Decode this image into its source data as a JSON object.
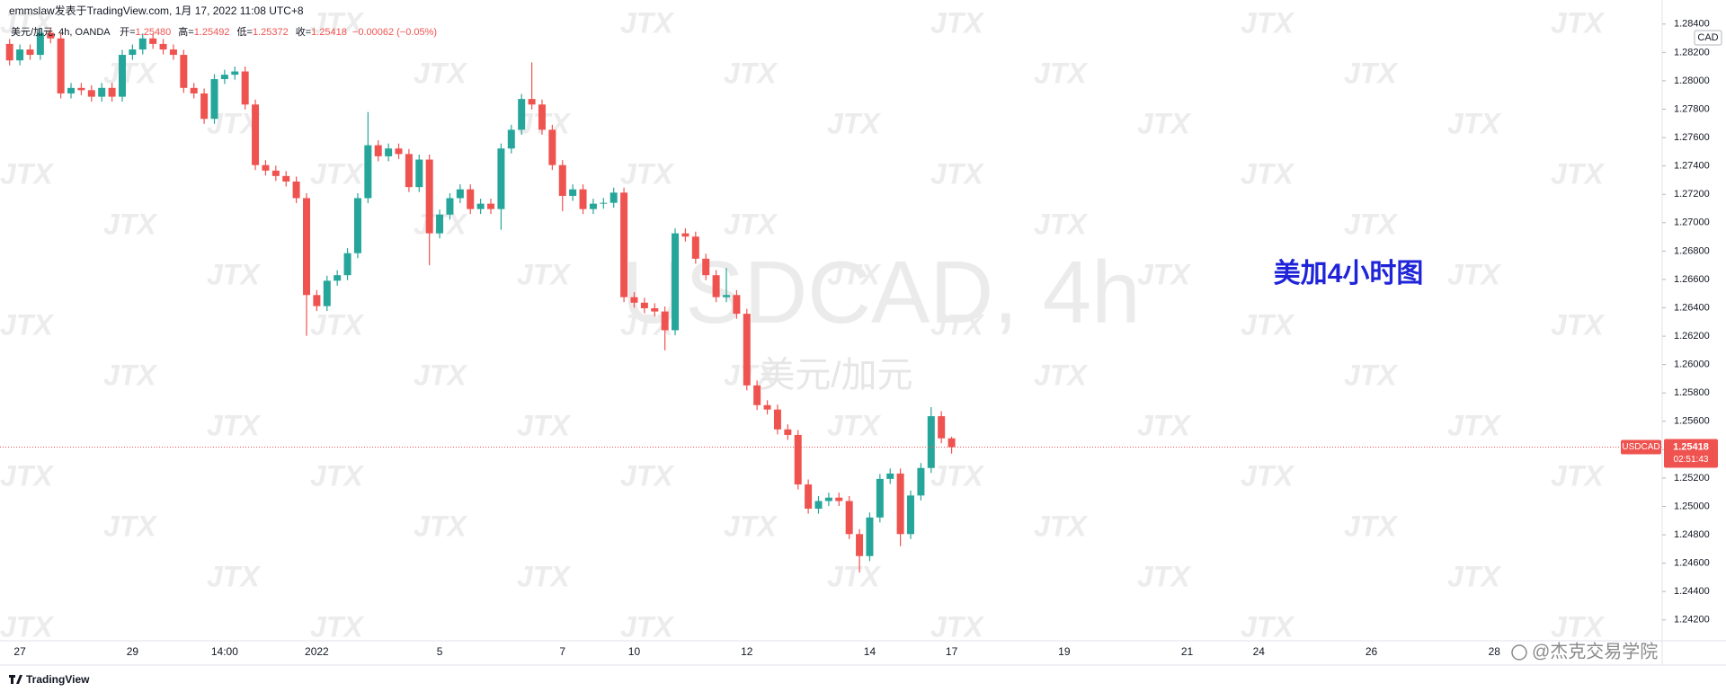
{
  "header": {
    "publisher": "emmslaw发表于TradingView.com, 1月 17, 2022 11:08 UTC+8"
  },
  "footer": {
    "branding": "TradingView",
    "credit": "@杰克交易学院"
  },
  "chart_data": {
    "type": "candlestick",
    "title": "美元/加元, 4h, OANDA",
    "ohlc_legend": [
      {
        "label": "开=",
        "text": "1.25480"
      },
      {
        "label": "高=",
        "text": "1.25492"
      },
      {
        "label": "低=",
        "text": "1.25372"
      },
      {
        "label": "收=",
        "text": "1.25418"
      }
    ],
    "change": "−0.00062 (−0.05%)",
    "watermark_symbol": "USDCAD, 4h",
    "watermark_name": "美元/加元",
    "watermark_tile": "JTX",
    "annotation": "美加4小时图",
    "currency": "CAD",
    "symbol": "USDCAD",
    "countdown": "02:51:43",
    "up_color": "#26a69a",
    "down_color": "#ef5350",
    "grid": false,
    "categories": [
      null,
      "27",
      null,
      null,
      null,
      null,
      null,
      null,
      null,
      null,
      null,
      null,
      "29",
      null,
      null,
      null,
      null,
      null,
      null,
      null,
      null,
      "14:00",
      null,
      null,
      null,
      null,
      null,
      null,
      null,
      null,
      "2022",
      null,
      null,
      null,
      null,
      null,
      null,
      null,
      null,
      null,
      null,
      null,
      "5",
      null,
      null,
      null,
      null,
      null,
      null,
      null,
      null,
      null,
      null,
      null,
      "7",
      null,
      null,
      null,
      null,
      null,
      null,
      "10",
      null,
      null,
      null,
      null,
      null,
      null,
      null,
      null,
      null,
      null,
      "12",
      null,
      null,
      null,
      null,
      null,
      null,
      null,
      null,
      null,
      null,
      null,
      "14",
      null,
      null,
      null,
      null,
      null,
      null,
      null,
      "17",
      null,
      null,
      null,
      null,
      null,
      null,
      null,
      null,
      null,
      null,
      "19",
      null,
      null,
      null,
      null,
      null,
      null,
      null,
      null,
      null,
      null,
      null,
      "21",
      null,
      null,
      null,
      null,
      null,
      null,
      "24",
      null,
      null,
      null,
      null,
      null,
      null,
      null,
      null,
      null,
      null,
      "26",
      null,
      null,
      null,
      null,
      null,
      null,
      null,
      null,
      null,
      null,
      null,
      "28",
      null,
      null,
      null,
      null,
      null,
      null,
      null,
      null,
      null,
      null,
      null,
      null,
      null,
      null,
      null
    ],
    "open": [
      1.2826,
      1.28144,
      1.28221,
      1.28183,
      1.28338,
      1.28299,
      1.27911,
      1.2795,
      1.27934,
      1.27888,
      1.2795,
      1.27888,
      1.28183,
      1.28221,
      1.28299,
      1.2826,
      1.28221,
      1.28183,
      1.2795,
      1.27911,
      1.27732,
      1.28012,
      1.28043,
      1.28066,
      1.27833,
      1.27406,
      1.27367,
      1.27329,
      1.2729,
      1.27173,
      1.2649,
      1.26412,
      1.26591,
      1.2663,
      1.26785,
      1.27173,
      1.27546,
      1.27468,
      1.27523,
      1.27484,
      1.27251,
      1.27445,
      1.26925,
      1.27057,
      1.27173,
      1.27235,
      1.27096,
      1.27134,
      1.27096,
      1.27523,
      1.27655,
      1.27872,
      1.27833,
      1.27655,
      1.27406,
      1.27189,
      1.27235,
      1.27096,
      1.27134,
      1.2714,
      1.27212,
      1.26475,
      1.26436,
      1.26397,
      1.26374,
      1.26242,
      1.26925,
      1.26902,
      1.26746,
      1.2663,
      1.26475,
      1.2649,
      1.26358,
      1.25853,
      1.25714,
      1.25683,
      1.25543,
      1.25504,
      1.25155,
      1.24984,
      1.25038,
      1.25062,
      1.25038,
      1.24805,
      1.2465,
      1.24922,
      1.25194,
      1.25232,
      1.24805,
      1.25077,
      1.25271,
      1.25636,
      1.2548,
      null,
      null,
      null,
      null,
      null,
      null,
      null,
      null,
      null,
      null,
      null,
      null,
      null,
      null,
      null,
      null,
      null,
      null,
      null,
      null,
      null,
      null,
      null,
      null,
      null,
      null,
      null,
      null,
      null,
      null,
      null,
      null,
      null,
      null,
      null,
      null,
      null,
      null,
      null,
      null,
      null,
      null,
      null,
      null,
      null,
      null,
      null,
      null,
      null,
      null,
      null,
      null,
      null,
      null,
      null,
      null,
      null,
      null,
      null,
      null,
      null,
      null,
      null,
      null,
      null,
      null,
      null,
      null
    ],
    "high": [
      1.28295,
      1.28256,
      1.28256,
      1.28373,
      1.28373,
      1.28334,
      1.27985,
      1.27985,
      1.27969,
      1.27985,
      1.27985,
      1.28218,
      1.28256,
      1.28334,
      1.28334,
      1.28295,
      1.28256,
      1.28218,
      1.27985,
      1.27946,
      1.28047,
      1.28078,
      1.28101,
      1.28101,
      1.27868,
      1.27441,
      1.27402,
      1.27364,
      1.27325,
      1.27208,
      1.26525,
      1.26626,
      1.26665,
      1.2682,
      1.27208,
      1.2778,
      1.27581,
      1.27558,
      1.27558,
      1.27519,
      1.2748,
      1.2748,
      1.27092,
      1.27208,
      1.2727,
      1.2727,
      1.27169,
      1.27169,
      1.27558,
      1.2769,
      1.27907,
      1.2813,
      1.27868,
      1.2769,
      1.27441,
      1.2727,
      1.2727,
      1.27169,
      1.27175,
      1.27247,
      1.27247,
      1.2651,
      1.26471,
      1.26432,
      1.26409,
      1.2696,
      1.2696,
      1.26937,
      1.26781,
      1.26665,
      1.2668,
      1.26525,
      1.26393,
      1.25888,
      1.25749,
      1.25718,
      1.25578,
      1.25539,
      1.2519,
      1.25073,
      1.25097,
      1.25097,
      1.25073,
      1.2484,
      1.24957,
      1.25229,
      1.25267,
      1.25267,
      1.25112,
      1.25306,
      1.257,
      1.25671,
      1.25492,
      null,
      null,
      null,
      null,
      null,
      null,
      null,
      null,
      null,
      null,
      null,
      null,
      null,
      null,
      null,
      null,
      null,
      null,
      null,
      null,
      null,
      null,
      null,
      null,
      null,
      null,
      null,
      null,
      null,
      null,
      null,
      null,
      null,
      null,
      null,
      null,
      null,
      null,
      null,
      null,
      null,
      null,
      null,
      null,
      null,
      null,
      null,
      null,
      null,
      null,
      null,
      null,
      null,
      null,
      null,
      null,
      null,
      null,
      null,
      null,
      null,
      null,
      null,
      null,
      null,
      null,
      null,
      null
    ],
    "low": [
      1.28109,
      1.28109,
      1.28148,
      1.28148,
      1.28264,
      1.27876,
      1.27876,
      1.27899,
      1.27853,
      1.27853,
      1.27853,
      1.27853,
      1.28148,
      1.28186,
      1.28225,
      1.28186,
      1.28148,
      1.27915,
      1.27876,
      1.27697,
      1.27697,
      1.27977,
      1.28008,
      1.27798,
      1.27371,
      1.27332,
      1.27294,
      1.27255,
      1.27138,
      1.26203,
      1.26377,
      1.26377,
      1.26556,
      1.26595,
      1.2675,
      1.27138,
      1.27433,
      1.27433,
      1.27449,
      1.27216,
      1.27216,
      1.267,
      1.2689,
      1.27022,
      1.27138,
      1.27061,
      1.27061,
      1.27061,
      1.2695,
      1.27488,
      1.2762,
      1.27798,
      1.2762,
      1.27371,
      1.2708,
      1.27154,
      1.27061,
      1.27061,
      1.27099,
      1.27105,
      1.2644,
      1.26401,
      1.26362,
      1.26339,
      1.261,
      1.26207,
      1.26867,
      1.26711,
      1.26595,
      1.2644,
      1.2644,
      1.26323,
      1.25818,
      1.25679,
      1.25648,
      1.25508,
      1.25469,
      1.2512,
      1.24949,
      1.24949,
      1.25003,
      1.25003,
      1.2477,
      1.24534,
      1.24615,
      1.24887,
      1.25159,
      1.2472,
      1.2477,
      1.25042,
      1.25236,
      1.25445,
      1.25372,
      null,
      null,
      null,
      null,
      null,
      null,
      null,
      null,
      null,
      null,
      null,
      null,
      null,
      null,
      null,
      null,
      null,
      null,
      null,
      null,
      null,
      null,
      null,
      null,
      null,
      null,
      null,
      null,
      null,
      null,
      null,
      null,
      null,
      null,
      null,
      null,
      null,
      null,
      null,
      null,
      null,
      null,
      null,
      null,
      null,
      null,
      null,
      null,
      null,
      null,
      null,
      null,
      null,
      null,
      null,
      null,
      null,
      null,
      null,
      null,
      null,
      null,
      null,
      null,
      null,
      null,
      null,
      null
    ],
    "close": [
      1.28144,
      1.28221,
      1.28183,
      1.28338,
      1.28299,
      1.27911,
      1.2795,
      1.27934,
      1.27888,
      1.2795,
      1.27888,
      1.28183,
      1.28221,
      1.28299,
      1.2826,
      1.28221,
      1.28183,
      1.2795,
      1.27911,
      1.27732,
      1.28012,
      1.28043,
      1.28066,
      1.27833,
      1.27406,
      1.27367,
      1.27329,
      1.2729,
      1.27173,
      1.2649,
      1.26412,
      1.26591,
      1.2663,
      1.26785,
      1.27173,
      1.27546,
      1.27468,
      1.27523,
      1.27484,
      1.27251,
      1.27445,
      1.26925,
      1.27057,
      1.27173,
      1.27235,
      1.27096,
      1.27134,
      1.27096,
      1.27523,
      1.27655,
      1.27872,
      1.27833,
      1.27655,
      1.27406,
      1.27189,
      1.27235,
      1.27096,
      1.27134,
      1.2714,
      1.27212,
      1.26475,
      1.26436,
      1.26397,
      1.26374,
      1.26242,
      1.26925,
      1.26902,
      1.26746,
      1.2663,
      1.26475,
      1.2649,
      1.26358,
      1.25853,
      1.25714,
      1.25683,
      1.25543,
      1.25504,
      1.25155,
      1.24984,
      1.25038,
      1.25062,
      1.25038,
      1.24805,
      1.2465,
      1.24922,
      1.25194,
      1.25232,
      1.24805,
      1.25077,
      1.25271,
      1.25636,
      1.2548,
      1.25418,
      null,
      null,
      null,
      null,
      null,
      null,
      null,
      null,
      null,
      null,
      null,
      null,
      null,
      null,
      null,
      null,
      null,
      null,
      null,
      null,
      null,
      null,
      null,
      null,
      null,
      null,
      null,
      null,
      null,
      null,
      null,
      null,
      null,
      null,
      null,
      null,
      null,
      null,
      null,
      null,
      null,
      null,
      null,
      null,
      null,
      null,
      null,
      null,
      null,
      null,
      null,
      null,
      null,
      null,
      null,
      null,
      null,
      null,
      null,
      null,
      null,
      null,
      null,
      null,
      null,
      null,
      null,
      null
    ],
    "ylim": [
      1.24053,
      1.28462
    ],
    "yticks": [
      {
        "value": 1.242,
        "label": "1.24200"
      },
      {
        "value": 1.244,
        "label": "1.24400"
      },
      {
        "value": 1.246,
        "label": "1.24600"
      },
      {
        "value": 1.248,
        "label": "1.24800"
      },
      {
        "value": 1.25,
        "label": "1.25000"
      },
      {
        "value": 1.252,
        "label": "1.25200"
      },
      {
        "value": 1.254,
        "label": "1.25400"
      },
      {
        "value": 1.256,
        "label": "1.25600"
      },
      {
        "value": 1.258,
        "label": "1.25800"
      },
      {
        "value": 1.26,
        "label": "1.26000"
      },
      {
        "value": 1.262,
        "label": "1.26200"
      },
      {
        "value": 1.264,
        "label": "1.26400"
      },
      {
        "value": 1.266,
        "label": "1.26600"
      },
      {
        "value": 1.268,
        "label": "1.26800"
      },
      {
        "value": 1.27,
        "label": "1.27000"
      },
      {
        "value": 1.272,
        "label": "1.27200"
      },
      {
        "value": 1.274,
        "label": "1.27400"
      },
      {
        "value": 1.276,
        "label": "1.27600"
      },
      {
        "value": 1.278,
        "label": "1.27800"
      },
      {
        "value": 1.28,
        "label": "1.28000"
      },
      {
        "value": 1.282,
        "label": "1.28200"
      },
      {
        "value": 1.284,
        "label": "1.28400"
      }
    ]
  }
}
